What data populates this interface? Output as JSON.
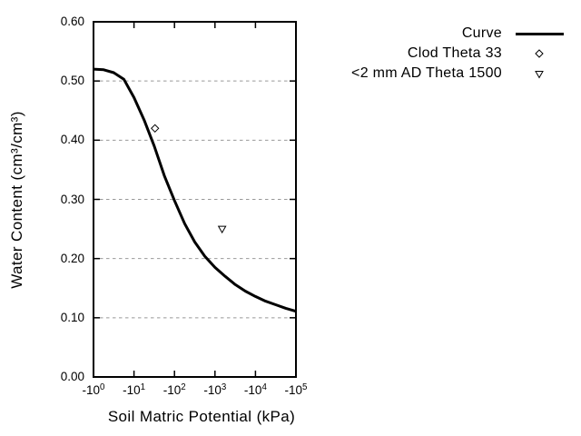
{
  "page": {
    "background": "#ffffff",
    "title": ""
  },
  "colors": {
    "foreground": "#000000",
    "grid": "#999999",
    "background": "#ffffff",
    "marker_fill": "#ffffff"
  },
  "axes": {
    "x": {
      "title": "Soil Matric Potential (kPa)",
      "scale": "log of negative kPa",
      "ticks": [
        {
          "base": "-10",
          "exp": "0",
          "kpa": -1
        },
        {
          "base": "-10",
          "exp": "1",
          "kpa": -10
        },
        {
          "base": "-10",
          "exp": "2",
          "kpa": -100
        },
        {
          "base": "-10",
          "exp": "3",
          "kpa": -1000
        },
        {
          "base": "-10",
          "exp": "4",
          "kpa": -10000
        },
        {
          "base": "-10",
          "exp": "5",
          "kpa": -100000
        }
      ]
    },
    "y": {
      "title": "Water Content (cm³/cm³)",
      "ticks": [
        {
          "label": "0.00",
          "value": 0.0
        },
        {
          "label": "0.10",
          "value": 0.1
        },
        {
          "label": "0.20",
          "value": 0.2
        },
        {
          "label": "0.30",
          "value": 0.3
        },
        {
          "label": "0.40",
          "value": 0.4
        },
        {
          "label": "0.50",
          "value": 0.5
        },
        {
          "label": "0.60",
          "value": 0.6
        }
      ]
    }
  },
  "legend": {
    "entries": [
      {
        "label": "Curve",
        "sample": "line"
      },
      {
        "label": "Clod Theta 33",
        "sample": "diamond"
      },
      {
        "label": "<2 mm AD Theta 1500",
        "sample": "triangle-down"
      }
    ]
  },
  "chart_data": {
    "type": "line",
    "title": "",
    "xlabel": "Soil Matric Potential (kPa)",
    "ylabel": "Water Content (cm³/cm³)",
    "xscale": "log (negative kPa, decades -10^0 to -10^5)",
    "xlim": [
      -1,
      -100000
    ],
    "ylim": [
      0.0,
      0.6
    ],
    "grid": "horizontal dashed gray lines at 0.10 intervals (0.10-0.50)",
    "legend_position": "top-right, outside plot area",
    "series": [
      {
        "name": "Curve",
        "type": "line",
        "color": "#000000",
        "points": [
          [
            -1,
            0.52
          ],
          [
            -1.78,
            0.519
          ],
          [
            -3.16,
            0.514
          ],
          [
            -5.62,
            0.503
          ],
          [
            -10,
            0.472
          ],
          [
            -17.8,
            0.434
          ],
          [
            -31.6,
            0.39
          ],
          [
            -56.2,
            0.34
          ],
          [
            -100,
            0.298
          ],
          [
            -178,
            0.259
          ],
          [
            -316,
            0.228
          ],
          [
            -562,
            0.204
          ],
          [
            -1000,
            0.185
          ],
          [
            -1780,
            0.17
          ],
          [
            -3160,
            0.156
          ],
          [
            -5620,
            0.145
          ],
          [
            -10000,
            0.136
          ],
          [
            -17800,
            0.128
          ],
          [
            -31600,
            0.122
          ],
          [
            -56200,
            0.116
          ],
          [
            -100000,
            0.111
          ]
        ]
      },
      {
        "name": "Clod Theta 33",
        "type": "scatter",
        "marker": "open-diamond",
        "color": "#000000",
        "points": [
          [
            -33,
            0.42
          ]
        ]
      },
      {
        "name": "<2 mm AD Theta 1500",
        "type": "scatter",
        "marker": "open-triangle-down",
        "color": "#000000",
        "points": [
          [
            -1500,
            0.25
          ]
        ]
      }
    ]
  }
}
